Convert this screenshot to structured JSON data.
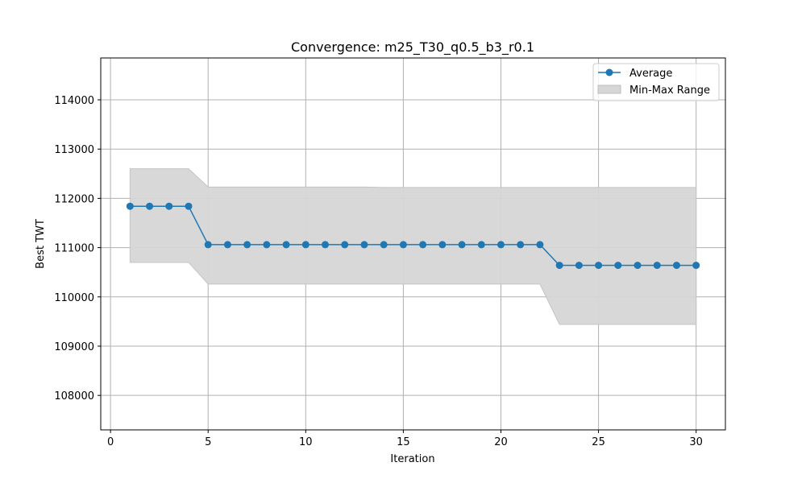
{
  "chart_data": {
    "type": "line",
    "title": "Convergence: m25_T30_q0.5_b3_r0.1",
    "xlabel": "Iteration",
    "ylabel": "Best TWT",
    "xlim": [
      -0.5,
      31.5
    ],
    "ylim": [
      107300,
      114850
    ],
    "xticks": [
      0,
      5,
      10,
      15,
      20,
      25,
      30
    ],
    "yticks": [
      108000,
      109000,
      110000,
      111000,
      112000,
      113000,
      114000
    ],
    "grid": true,
    "legend_position": "top-right",
    "x": [
      1,
      2,
      3,
      4,
      5,
      6,
      7,
      8,
      9,
      10,
      11,
      12,
      13,
      14,
      15,
      16,
      17,
      18,
      19,
      20,
      21,
      22,
      23,
      24,
      25,
      26,
      27,
      28,
      29,
      30
    ],
    "series": [
      {
        "name": "Average",
        "kind": "line-marker",
        "color": "#1f77b4",
        "values": [
          111840,
          111840,
          111840,
          111840,
          111060,
          111060,
          111060,
          111060,
          111060,
          111060,
          111060,
          111060,
          111060,
          111060,
          111060,
          111060,
          111060,
          111060,
          111060,
          111060,
          111060,
          111060,
          110640,
          110640,
          110640,
          110640,
          110640,
          110640,
          110640,
          110640
        ]
      },
      {
        "name": "Min-Max Range",
        "kind": "band",
        "color": "#d6d6d6",
        "min": [
          110700,
          110700,
          110700,
          110700,
          110260,
          110260,
          110260,
          110260,
          110260,
          110260,
          110260,
          110260,
          110260,
          110260,
          110260,
          110260,
          110260,
          110260,
          110260,
          110260,
          110260,
          110260,
          109440,
          109440,
          109440,
          109440,
          109440,
          109440,
          109440,
          109440
        ],
        "max": [
          112600,
          112600,
          112600,
          112600,
          112230,
          112230,
          112230,
          112230,
          112230,
          112230,
          112230,
          112230,
          112230,
          112220,
          112220,
          112220,
          112220,
          112220,
          112220,
          112220,
          112220,
          112220,
          112220,
          112220,
          112220,
          112220,
          112220,
          112220,
          112220,
          112220
        ]
      }
    ]
  }
}
